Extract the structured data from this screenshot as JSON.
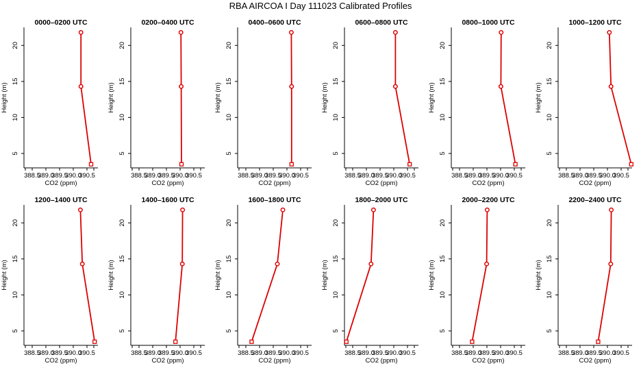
{
  "figure": {
    "title": "RBA AIRCOA I  Day 111023  Calibrated Profiles"
  },
  "colors": {
    "series": "#dd0000",
    "axis": "#000000"
  },
  "chart_data": [
    {
      "type": "line",
      "title": "0000–0200 UTC",
      "xlabel": "CO2 (ppm)",
      "ylabel": "Height (m)",
      "xlim": [
        388.2,
        390.9
      ],
      "ylim": [
        3.0,
        22.5
      ],
      "xticks": [
        "388.5",
        "389.0",
        "389.5",
        "390.0",
        "390.5"
      ],
      "yticks": [
        "5",
        "10",
        "15",
        "20"
      ],
      "x": [
        390.65,
        390.28,
        390.28
      ],
      "y": [
        3.5,
        14.3,
        21.8
      ]
    },
    {
      "type": "line",
      "title": "0200–0400 UTC",
      "xlabel": "CO2 (ppm)",
      "ylabel": "Height (m)",
      "xlim": [
        388.2,
        390.9
      ],
      "ylim": [
        3.0,
        22.5
      ],
      "xticks": [
        "388.5",
        "389.0",
        "389.5",
        "390.0",
        "390.5"
      ],
      "yticks": [
        "5",
        "10",
        "15",
        "20"
      ],
      "x": [
        390.05,
        390.04,
        390.03
      ],
      "y": [
        3.5,
        14.3,
        21.8
      ]
    },
    {
      "type": "line",
      "title": "0400–0600 UTC",
      "xlabel": "CO2 (ppm)",
      "ylabel": "Height (m)",
      "xlim": [
        388.2,
        390.9
      ],
      "ylim": [
        3.0,
        22.5
      ],
      "xticks": [
        "388.5",
        "389.0",
        "389.5",
        "390.0",
        "390.5"
      ],
      "yticks": [
        "5",
        "10",
        "15",
        "20"
      ],
      "x": [
        390.17,
        390.17,
        390.16
      ],
      "y": [
        3.5,
        14.3,
        21.8
      ]
    },
    {
      "type": "line",
      "title": "0600–0800 UTC",
      "xlabel": "CO2 (ppm)",
      "ylabel": "Height (m)",
      "xlim": [
        388.2,
        390.9
      ],
      "ylim": [
        3.0,
        22.5
      ],
      "xticks": [
        "388.5",
        "389.0",
        "389.5",
        "390.0",
        "390.5"
      ],
      "yticks": [
        "5",
        "10",
        "15",
        "20"
      ],
      "x": [
        390.58,
        390.06,
        390.06
      ],
      "y": [
        3.5,
        14.3,
        21.8
      ]
    },
    {
      "type": "line",
      "title": "0800–1000 UTC",
      "xlabel": "CO2 (ppm)",
      "ylabel": "Height (m)",
      "xlim": [
        388.2,
        390.9
      ],
      "ylim": [
        3.0,
        22.5
      ],
      "xticks": [
        "388.5",
        "389.0",
        "389.5",
        "390.0",
        "390.5"
      ],
      "yticks": [
        "5",
        "10",
        "15",
        "20"
      ],
      "x": [
        390.54,
        390.01,
        390.02
      ],
      "y": [
        3.5,
        14.3,
        21.8
      ]
    },
    {
      "type": "line",
      "title": "1000–1200 UTC",
      "xlabel": "CO2 (ppm)",
      "ylabel": "Height (m)",
      "xlim": [
        388.2,
        390.9
      ],
      "ylim": [
        3.0,
        22.5
      ],
      "xticks": [
        "388.5",
        "389.0",
        "389.5",
        "390.0",
        "390.5"
      ],
      "yticks": [
        "5",
        "10",
        "15",
        "20"
      ],
      "x": [
        390.87,
        390.13,
        390.07
      ],
      "y": [
        3.5,
        14.3,
        21.8
      ]
    },
    {
      "type": "line",
      "title": "1200–1400 UTC",
      "xlabel": "CO2 (ppm)",
      "ylabel": "Height (m)",
      "xlim": [
        388.2,
        390.9
      ],
      "ylim": [
        3.0,
        22.5
      ],
      "xticks": [
        "388.5",
        "389.0",
        "389.5",
        "390.0",
        "390.5"
      ],
      "yticks": [
        "5",
        "10",
        "15",
        "20"
      ],
      "x": [
        390.78,
        390.33,
        390.26
      ],
      "y": [
        3.5,
        14.3,
        21.8
      ]
    },
    {
      "type": "line",
      "title": "1400–1600 UTC",
      "xlabel": "CO2 (ppm)",
      "ylabel": "Height (m)",
      "xlim": [
        388.2,
        390.9
      ],
      "ylim": [
        3.0,
        22.5
      ],
      "xticks": [
        "388.5",
        "389.0",
        "389.5",
        "390.0",
        "390.5"
      ],
      "yticks": [
        "5",
        "10",
        "15",
        "20"
      ],
      "x": [
        389.83,
        390.08,
        390.09
      ],
      "y": [
        3.5,
        14.3,
        21.8
      ]
    },
    {
      "type": "line",
      "title": "1600–1800 UTC",
      "xlabel": "CO2 (ppm)",
      "ylabel": "Height (m)",
      "xlim": [
        388.2,
        390.9
      ],
      "ylim": [
        3.0,
        22.5
      ],
      "xticks": [
        "388.5",
        "389.0",
        "389.5",
        "390.0",
        "390.5"
      ],
      "yticks": [
        "5",
        "10",
        "15",
        "20"
      ],
      "x": [
        388.71,
        389.65,
        389.85
      ],
      "y": [
        3.5,
        14.3,
        21.8
      ]
    },
    {
      "type": "line",
      "title": "1800–2000 UTC",
      "xlabel": "CO2 (ppm)",
      "ylabel": "Height (m)",
      "xlim": [
        388.2,
        390.9
      ],
      "ylim": [
        3.0,
        22.5
      ],
      "xticks": [
        "388.5",
        "389.0",
        "389.5",
        "390.0",
        "390.5"
      ],
      "yticks": [
        "5",
        "10",
        "15",
        "20"
      ],
      "x": [
        388.27,
        389.17,
        389.26
      ],
      "y": [
        3.5,
        14.3,
        21.8
      ]
    },
    {
      "type": "line",
      "title": "2000–2200 UTC",
      "xlabel": "CO2 (ppm)",
      "ylabel": "Height (m)",
      "xlim": [
        388.2,
        390.9
      ],
      "ylim": [
        3.0,
        22.5
      ],
      "xticks": [
        "388.5",
        "389.0",
        "389.5",
        "390.0",
        "390.5"
      ],
      "yticks": [
        "5",
        "10",
        "15",
        "20"
      ],
      "x": [
        388.96,
        389.49,
        389.51
      ],
      "y": [
        3.5,
        14.3,
        21.8
      ]
    },
    {
      "type": "line",
      "title": "2200–2400 UTC",
      "xlabel": "CO2 (ppm)",
      "ylabel": "Height (m)",
      "xlim": [
        388.2,
        390.9
      ],
      "ylim": [
        3.0,
        22.5
      ],
      "xticks": [
        "388.5",
        "389.0",
        "389.5",
        "390.0",
        "390.5"
      ],
      "yticks": [
        "5",
        "10",
        "15",
        "20"
      ],
      "x": [
        389.66,
        390.12,
        390.14
      ],
      "y": [
        3.5,
        14.3,
        21.8
      ]
    }
  ]
}
